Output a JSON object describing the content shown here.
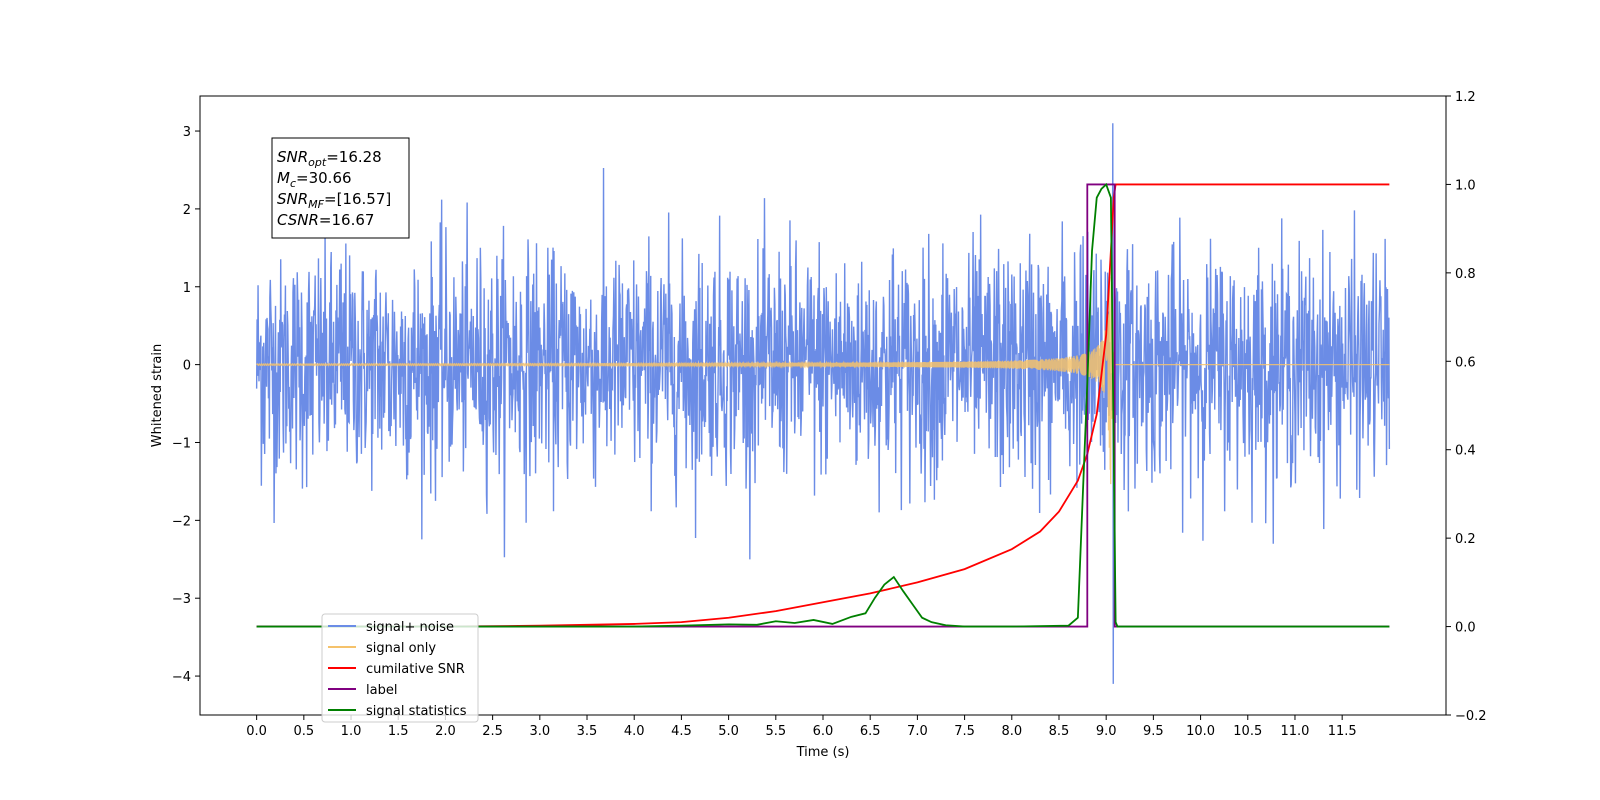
{
  "chart_data": {
    "type": "line",
    "xlabel": "Time (s)",
    "ylabel_left": "Whitened strain",
    "ylabel_right": "",
    "xlim": [
      -0.6,
      12.6
    ],
    "ylim_left": [
      -4.5,
      3.45
    ],
    "ylim_right": [
      -0.2,
      1.2
    ],
    "x_ticks": [
      0.0,
      0.5,
      1.0,
      1.5,
      2.0,
      2.5,
      3.0,
      3.5,
      4.0,
      4.5,
      5.0,
      5.5,
      6.0,
      6.5,
      7.0,
      7.5,
      8.0,
      8.5,
      9.0,
      9.5,
      10.0,
      10.5,
      11.0,
      11.5
    ],
    "x_tick_labels": [
      "0.0",
      "0.5",
      "1.0",
      "1.5",
      "2.0",
      "2.5",
      "3.0",
      "3.5",
      "4.0",
      "4.5",
      "5.0",
      "5.5",
      "6.0",
      "6.5",
      "7.0",
      "7.5",
      "8.0",
      "8.5",
      "9.0",
      "9.5",
      "10.0",
      "10.5",
      "11.0",
      "11.5"
    ],
    "y_left_ticks": [
      3,
      2,
      1,
      0,
      -1,
      -2,
      -3,
      -4
    ],
    "y_left_tick_labels": [
      "3",
      "2",
      "1",
      "0",
      "−1",
      "−2",
      "−3",
      "−4"
    ],
    "y_right_ticks": [
      1.2,
      1.0,
      0.8,
      0.6,
      0.4,
      0.2,
      0.0,
      -0.2
    ],
    "y_right_tick_labels": [
      "1.2",
      "1.0",
      "0.8",
      "0.6",
      "0.4",
      "0.2",
      "0.0",
      "−0.2"
    ],
    "grid": false,
    "legend_position": "lower-left",
    "legend": [
      {
        "label": "signal+ noise",
        "color": "#6b8ce6"
      },
      {
        "label": "signal only",
        "color": "#f5c26b"
      },
      {
        "label": "cumilative SNR",
        "color": "#ff0000"
      },
      {
        "label": "label",
        "color": "#800080"
      },
      {
        "label": "signal statistics",
        "color": "#008000"
      }
    ],
    "annotation": [
      {
        "sym": "SNR",
        "sub": "opt",
        "value": "=16.28"
      },
      {
        "sym": "M",
        "sub": "c",
        "value": "=30.66"
      },
      {
        "sym": "SNR",
        "sub": "MF",
        "value": "=[16.57]"
      },
      {
        "sym": "CSNR",
        "sub": "",
        "value": "=16.67"
      }
    ],
    "series": [
      {
        "name": "signal+ noise",
        "axis": "left",
        "color": "#6b8ce6",
        "description_values": {
          "x_range": [
            0.0,
            12.0
          ],
          "typical_amplitude": [
            -1.5,
            1.5
          ],
          "min": -4.1,
          "max": 3.1,
          "peak_time": 9.07
        }
      },
      {
        "name": "signal only",
        "axis": "left",
        "color": "#f5c26b",
        "chirp": {
          "start": 0.0,
          "merger": 9.05,
          "end": 12.0,
          "peak_amplitude": 1.55
        }
      },
      {
        "name": "cumilative SNR",
        "axis": "right",
        "color": "#ff0000",
        "x": [
          0.0,
          1.0,
          2.0,
          3.0,
          3.5,
          4.0,
          4.5,
          5.0,
          5.5,
          6.0,
          6.5,
          7.0,
          7.5,
          8.0,
          8.3,
          8.5,
          8.7,
          8.8,
          8.9,
          9.0,
          9.05,
          9.08,
          9.1,
          12.0
        ],
        "values": [
          0.0,
          0.0,
          0.0,
          0.002,
          0.004,
          0.006,
          0.01,
          0.02,
          0.035,
          0.055,
          0.075,
          0.1,
          0.13,
          0.175,
          0.215,
          0.26,
          0.33,
          0.39,
          0.48,
          0.66,
          0.85,
          0.97,
          1.0,
          1.0
        ]
      },
      {
        "name": "label",
        "axis": "right",
        "color": "#800080",
        "x": [
          0.0,
          8.8,
          8.8,
          9.09,
          9.09,
          12.0
        ],
        "values": [
          0.0,
          0.0,
          1.0,
          1.0,
          0.0,
          0.0
        ]
      },
      {
        "name": "signal statistics",
        "axis": "right",
        "color": "#008000",
        "x": [
          0.0,
          4.0,
          4.5,
          5.0,
          5.3,
          5.5,
          5.7,
          5.9,
          6.1,
          6.3,
          6.45,
          6.55,
          6.65,
          6.75,
          6.85,
          6.95,
          7.05,
          7.15,
          7.3,
          7.5,
          8.0,
          8.6,
          8.7,
          8.8,
          8.85,
          8.9,
          8.95,
          9.0,
          9.05,
          9.08,
          9.1,
          9.12,
          12.0
        ],
        "values": [
          0.0,
          0.0,
          0.002,
          0.005,
          0.004,
          0.012,
          0.008,
          0.015,
          0.006,
          0.022,
          0.03,
          0.065,
          0.095,
          0.112,
          0.08,
          0.05,
          0.02,
          0.01,
          0.003,
          0.0,
          0.0,
          0.002,
          0.02,
          0.55,
          0.85,
          0.97,
          0.99,
          1.0,
          0.97,
          0.4,
          0.01,
          0.0,
          0.0
        ]
      }
    ]
  }
}
